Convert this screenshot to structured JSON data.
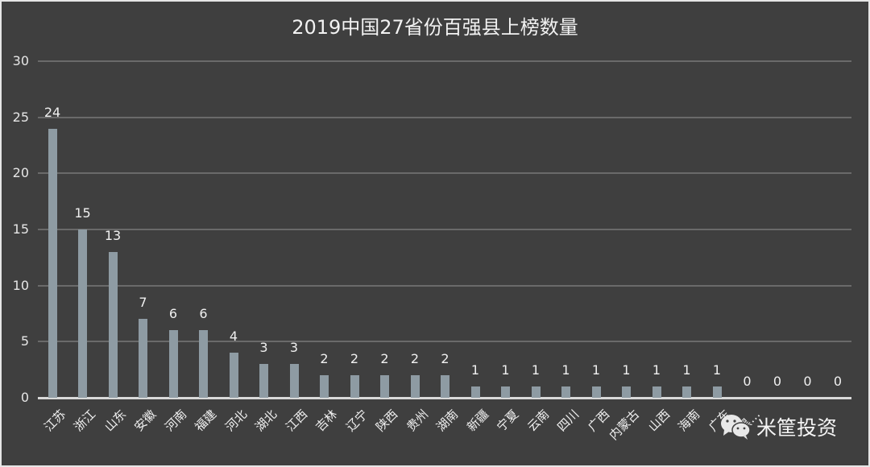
{
  "chart_data": {
    "type": "bar",
    "title": "2019中国27省份百强县上榜数量",
    "xlabel": "",
    "ylabel": "",
    "ylim": [
      0,
      30
    ],
    "yticks": [
      0,
      5,
      10,
      15,
      20,
      25,
      30
    ],
    "grid": true,
    "legend": null,
    "bar_color": "#8e9ba3",
    "background": "#3f3f3f",
    "categories": [
      "江苏",
      "浙江",
      "山东",
      "安徽",
      "河南",
      "福建",
      "河北",
      "湖北",
      "江西",
      "吉林",
      "辽宁",
      "陕西",
      "贵州",
      "湖南",
      "新疆",
      "宁夏",
      "云南",
      "四川",
      "广西",
      "内蒙古",
      "山西",
      "海南",
      "广东",
      "黑…",
      "",
      "",
      ""
    ],
    "values": [
      24,
      15,
      13,
      7,
      6,
      6,
      4,
      3,
      3,
      2,
      2,
      2,
      2,
      2,
      1,
      1,
      1,
      1,
      1,
      1,
      1,
      1,
      1,
      0,
      0,
      0,
      0
    ]
  },
  "yticks_labels": [
    "0",
    "5",
    "10",
    "15",
    "20",
    "25",
    "30"
  ],
  "watermark": {
    "icon": "wechat-icon",
    "text": "米筐投资"
  }
}
